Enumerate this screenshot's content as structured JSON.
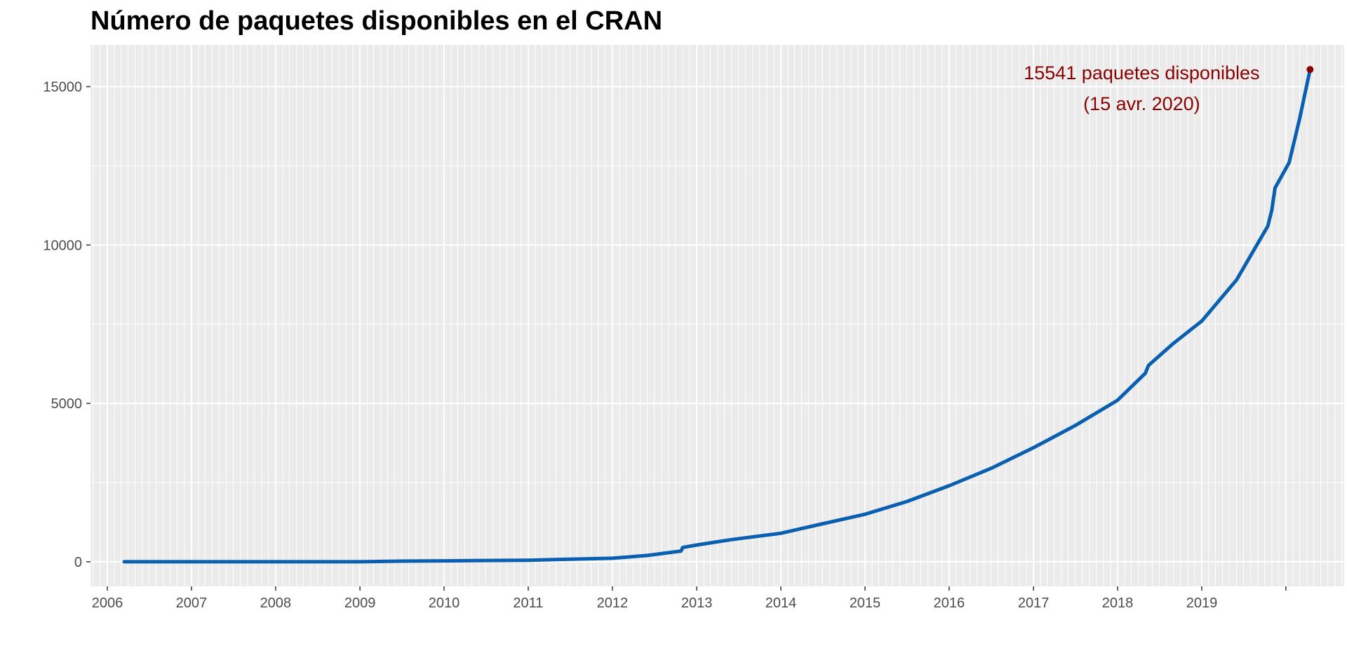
{
  "chart_data": {
    "type": "line",
    "title": "Número de paquetes disponibles en el CRAN",
    "xlabel": "",
    "ylabel": "",
    "x_ticks": [
      "2006",
      "2007",
      "2008",
      "2009",
      "2010",
      "2011",
      "2012",
      "2013",
      "2014",
      "2015",
      "2016",
      "2017",
      "2018",
      "2019"
    ],
    "y_ticks": [
      0,
      5000,
      10000,
      15000
    ],
    "xlim": [
      "2005-10-20",
      "2020-09-10"
    ],
    "ylim": [
      -777,
      16318
    ],
    "grid": true,
    "series": [
      {
        "color": "#0a5fb0",
        "x": [
          "2006-03-15",
          "2007-01-01",
          "2008-01-01",
          "2009-01-01",
          "2009-07-01",
          "2010-01-01",
          "2010-07-01",
          "2011-01-01",
          "2011-07-01",
          "2012-01-01",
          "2012-06-01",
          "2012-10-25",
          "2012-11-01",
          "2013-01-01",
          "2013-06-01",
          "2014-01-01",
          "2014-06-01",
          "2015-01-01",
          "2015-07-01",
          "2016-01-01",
          "2016-07-01",
          "2017-01-01",
          "2017-07-01",
          "2018-01-01",
          "2018-05-01",
          "2018-05-15",
          "2018-09-01",
          "2019-01-01",
          "2019-06-01",
          "2019-10-15",
          "2019-11-01",
          "2019-11-15",
          "2020-01-15",
          "2020-03-01",
          "2020-04-15"
        ],
        "y": [
          0,
          0,
          0,
          0,
          20,
          30,
          40,
          50,
          80,
          110,
          200,
          340,
          450,
          530,
          700,
          900,
          1150,
          1500,
          1900,
          2400,
          2950,
          3600,
          4300,
          5100,
          5950,
          6200,
          6900,
          7600,
          8900,
          10600,
          11100,
          11800,
          12600,
          14000,
          15541
        ]
      }
    ],
    "annotation": {
      "text_line1": "15541 paquetes disponibles",
      "text_line2": "(15 avr. 2020)",
      "x": "2020-04-15",
      "y": 15541,
      "color": "#8b0000"
    },
    "panel_color": "#ebebeb",
    "grid_color": "#ffffff"
  }
}
